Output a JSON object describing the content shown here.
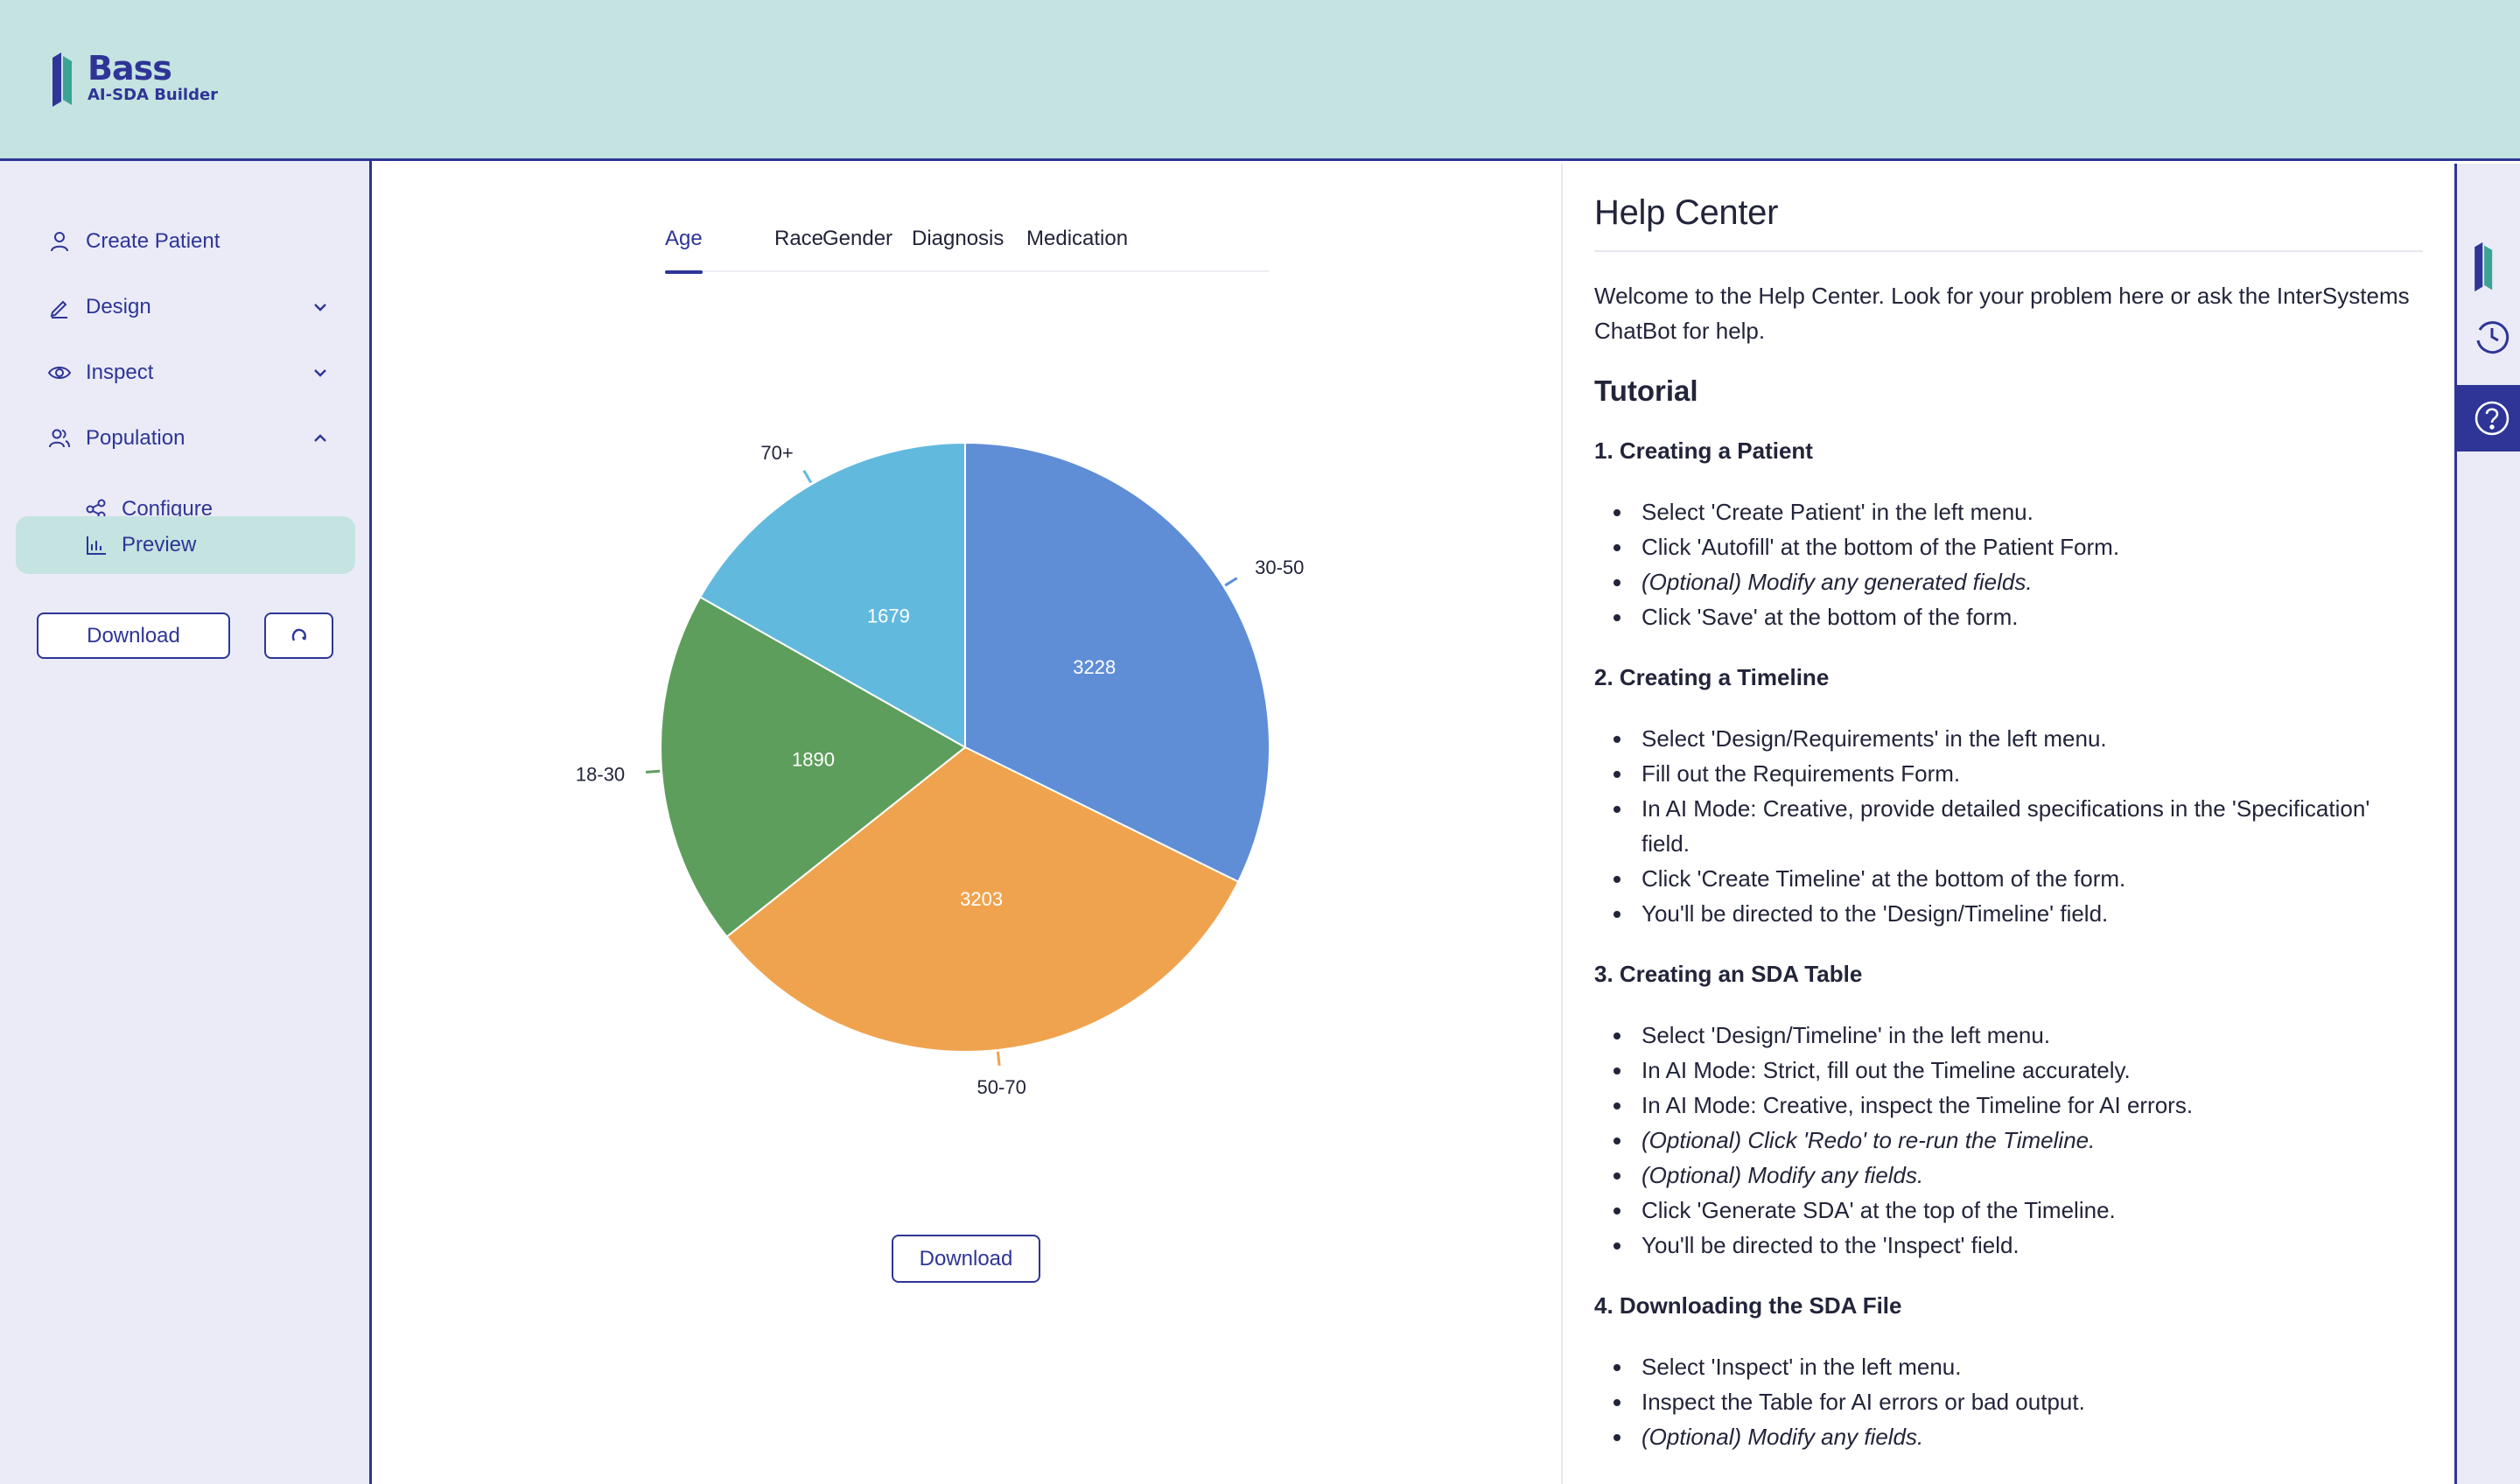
{
  "app": {
    "title": "Bass",
    "subtitle": "AI-SDA Builder"
  },
  "sidebar": {
    "items": [
      {
        "label": "Create Patient",
        "icon": "user-icon"
      },
      {
        "label": "Design",
        "icon": "pencil-icon",
        "expanded": false
      },
      {
        "label": "Inspect",
        "icon": "eye-icon",
        "expanded": false
      },
      {
        "label": "Population",
        "icon": "users-icon",
        "expanded": true
      },
      {
        "label": "Configure",
        "icon": "share-icon"
      },
      {
        "label": "Preview",
        "icon": "bar-chart-icon",
        "active": true
      }
    ],
    "download_label": "Download",
    "refresh_icon": "refresh-icon"
  },
  "main": {
    "tabs": [
      {
        "label": "Age",
        "active": true
      },
      {
        "label": "Race"
      },
      {
        "label": "Gender"
      },
      {
        "label": "Diagnosis"
      },
      {
        "label": "Medication"
      }
    ],
    "download_label": "Download"
  },
  "chart_data": {
    "type": "pie",
    "categories": [
      "30-50",
      "50-70",
      "18-30",
      "70+"
    ],
    "values": [
      3228,
      3203,
      1890,
      1679
    ],
    "colors": [
      "#5f8ed6",
      "#f0a34e",
      "#5e9e5d",
      "#62b9de"
    ],
    "title": "",
    "legend": "none"
  },
  "help": {
    "title": "Help Center",
    "intro": "Welcome to the Help Center. Look for your problem here or ask the InterSystems ChatBot for help.",
    "tutorial_heading": "Tutorial",
    "sections": [
      {
        "heading": "1. Creating a Patient",
        "items": [
          {
            "text": "Select 'Create Patient' in the left menu."
          },
          {
            "text": "Click 'Autofill' at the bottom of the Patient Form."
          },
          {
            "text": "(Optional) Modify any generated fields.",
            "italic": true
          },
          {
            "text": "Click 'Save' at the bottom of the form."
          }
        ]
      },
      {
        "heading": "2. Creating a Timeline",
        "items": [
          {
            "text": "Select 'Design/Requirements' in the left menu."
          },
          {
            "text": "Fill out the Requirements Form."
          },
          {
            "text": "In AI Mode: Creative, provide detailed specifications in the 'Specification' field."
          },
          {
            "text": "Click 'Create Timeline' at the bottom of the form."
          },
          {
            "text": "You'll be directed to the 'Design/Timeline' field."
          }
        ]
      },
      {
        "heading": "3. Creating an SDA Table",
        "items": [
          {
            "text": "Select 'Design/Timeline' in the left menu."
          },
          {
            "text": "In AI Mode: Strict, fill out the Timeline accurately."
          },
          {
            "text": "In AI Mode: Creative, inspect the Timeline for AI errors."
          },
          {
            "text": "(Optional) Click 'Redo' to re-run the Timeline.",
            "italic": true
          },
          {
            "text": "(Optional) Modify any fields.",
            "italic": true
          },
          {
            "text": "Click 'Generate SDA' at the top of the Timeline."
          },
          {
            "text": "You'll be directed to the 'Inspect' field."
          }
        ]
      },
      {
        "heading": "4. Downloading the SDA File",
        "items": [
          {
            "text": "Select 'Inspect' in the left menu."
          },
          {
            "text": "Inspect the Table for AI errors or bad output."
          },
          {
            "text": "(Optional) Modify any fields.",
            "italic": true
          }
        ]
      }
    ]
  },
  "rail": {
    "icons": [
      "logo-icon",
      "history-icon",
      "help-icon"
    ],
    "active": "help-icon"
  },
  "colors": {
    "accent": "#2e3596",
    "header_bg": "#c5e3e1",
    "sidebar_bg": "#eaebf7"
  }
}
